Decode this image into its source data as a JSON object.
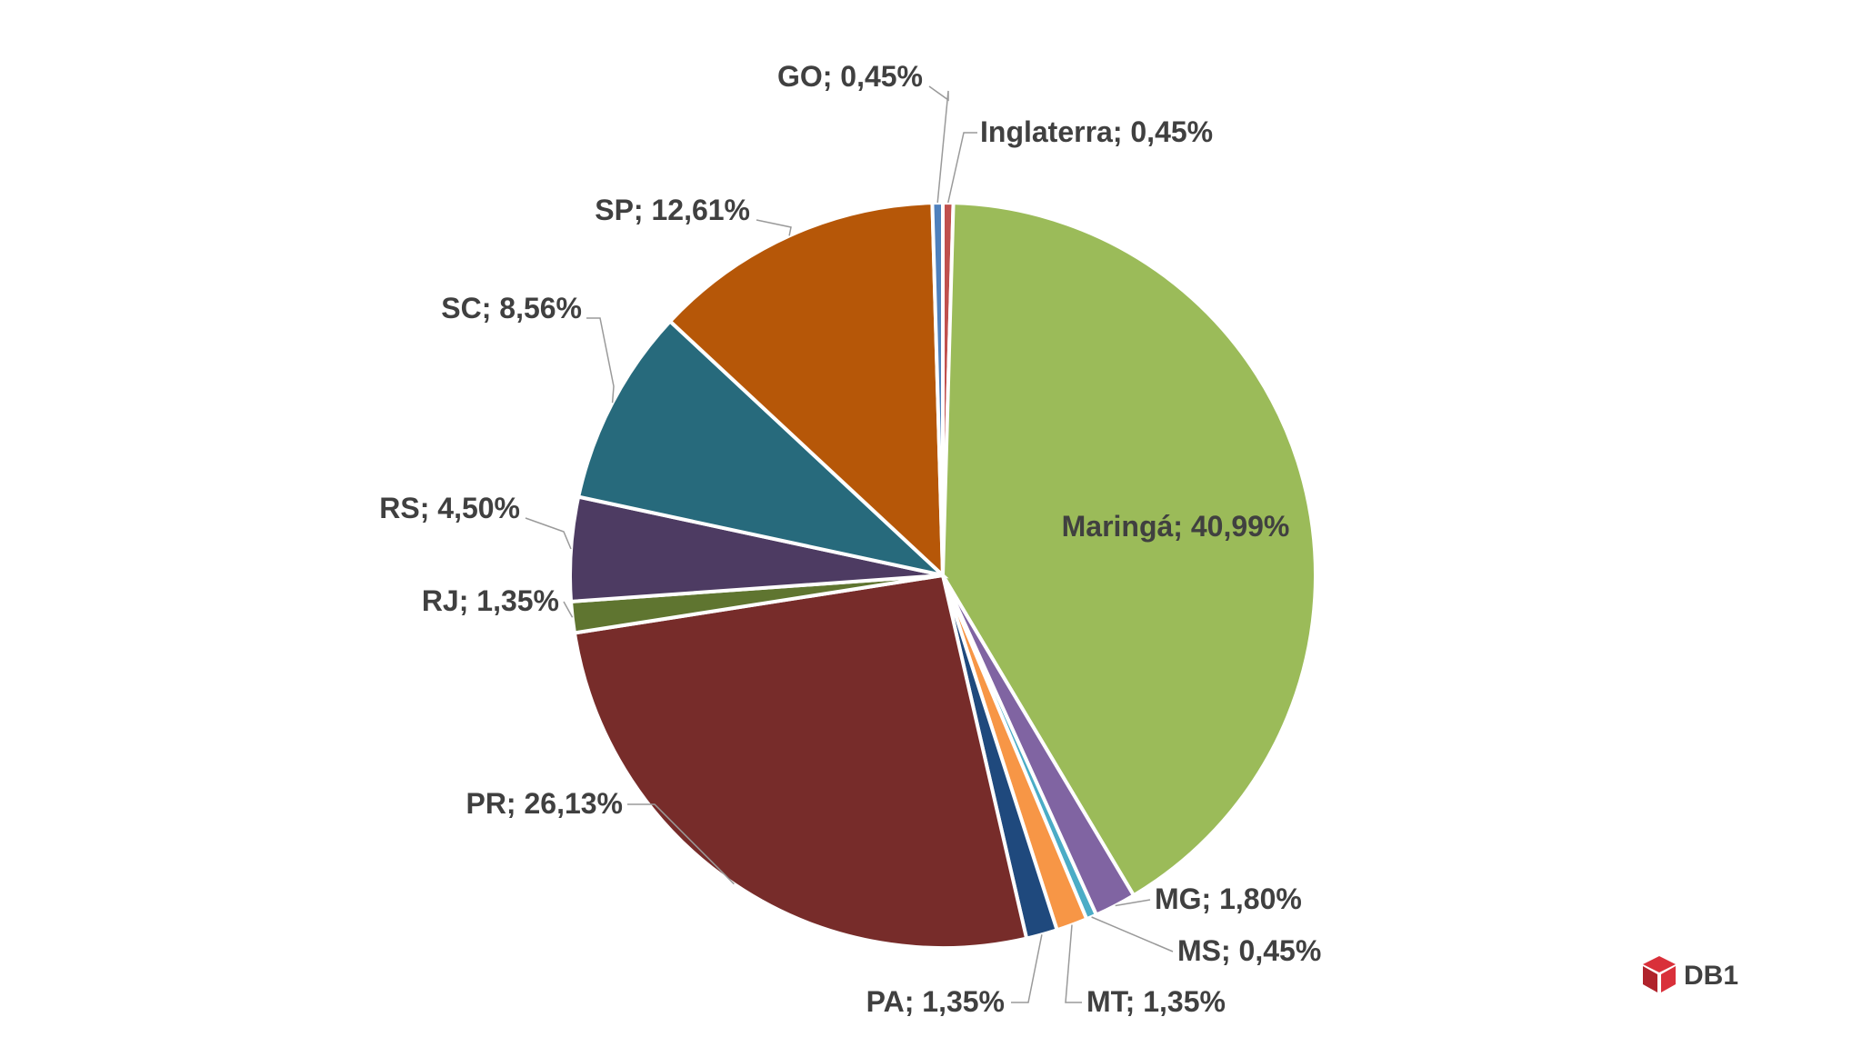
{
  "chart_data": {
    "type": "pie",
    "title": "",
    "slices": [
      {
        "label": "Inglaterra; 0,45%",
        "name": "Inglaterra",
        "value": 0.45,
        "color": "#c0504d"
      },
      {
        "label": "Maringá; 40,99%",
        "name": "Maringá",
        "value": 40.99,
        "color": "#9bbb59"
      },
      {
        "label": "MG; 1,80%",
        "name": "MG",
        "value": 1.8,
        "color": "#8064a2"
      },
      {
        "label": "MS; 0,45%",
        "name": "MS",
        "value": 0.45,
        "color": "#4bacc6"
      },
      {
        "label": "MT; 1,35%",
        "name": "MT",
        "value": 1.35,
        "color": "#f79646"
      },
      {
        "label": "PA; 1,35%",
        "name": "PA",
        "value": 1.35,
        "color": "#1f497d"
      },
      {
        "label": "PR; 26,13%",
        "name": "PR",
        "value": 26.13,
        "color": "#772c2a"
      },
      {
        "label": "RJ; 1,35%",
        "name": "RJ",
        "value": 1.35,
        "color": "#5f7530"
      },
      {
        "label": "RS; 4,50%",
        "name": "RS",
        "value": 4.5,
        "color": "#4d3b62"
      },
      {
        "label": "SC; 8,56%",
        "name": "SC",
        "value": 8.56,
        "color": "#276a7c"
      },
      {
        "label": "SP; 12,61%",
        "name": "SP",
        "value": 12.61,
        "color": "#b65708"
      },
      {
        "label": "GO; 0,45%",
        "name": "GO",
        "value": 0.45,
        "color": "#4f81bd"
      }
    ]
  },
  "logo": {
    "text": "DB1",
    "color": "#d9303a"
  }
}
